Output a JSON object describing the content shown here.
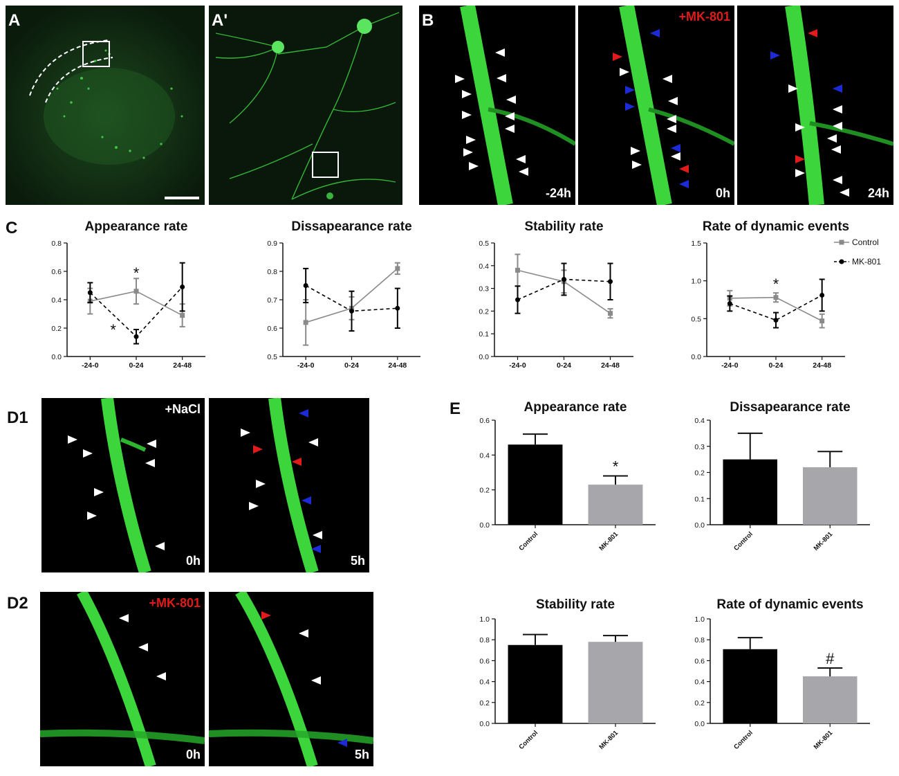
{
  "panels": {
    "A": "A",
    "A_prime": "A'",
    "B": "B",
    "C": "C",
    "D1": "D1",
    "D2": "D2",
    "E": "E"
  },
  "image_labels": {
    "b_mk801": "+MK-801",
    "b_t1": "-24h",
    "b_t2": "0h",
    "b_t3": "24h",
    "d1_nacl": "+NaCl",
    "d1_t1": "0h",
    "d1_t2": "5h",
    "d2_mk801": "+MK-801",
    "d2_t1": "0h",
    "d2_t2": "5h"
  },
  "colors": {
    "fluorescence": "#33dd33",
    "control": "#8a8a8a",
    "mk801": "#000000",
    "arrow_white": "#ffffff",
    "arrow_red": "#e11b1b",
    "arrow_blue": "#1c2bd6",
    "bar_control": "#000000",
    "bar_mk801": "#a7a7ab"
  },
  "chart_data": [
    {
      "id": "C1",
      "type": "line",
      "title": "Appearance rate",
      "categories": [
        "-24-0",
        "0-24",
        "24-48"
      ],
      "ylim": [
        0.0,
        0.8
      ],
      "yticks": [
        "0.0",
        "0.2",
        "0.4",
        "0.6",
        "0.8"
      ],
      "series": [
        {
          "name": "Control",
          "values": [
            0.39,
            0.46,
            0.29
          ],
          "err": [
            0.09,
            0.09,
            0.08
          ]
        },
        {
          "name": "MK-801",
          "values": [
            0.45,
            0.14,
            0.49
          ],
          "err": [
            0.07,
            0.05,
            0.17
          ]
        }
      ],
      "annotations": [
        {
          "text": "*",
          "category": "0-24",
          "value": 0.6
        },
        {
          "text": "*",
          "category": "-24-0",
          "offset": 0.5,
          "value": 0.2
        }
      ]
    },
    {
      "id": "C2",
      "type": "line",
      "title": "Dissapearance rate",
      "categories": [
        "-24-0",
        "0-24",
        "24-48"
      ],
      "ylim": [
        0.5,
        0.9
      ],
      "yticks": [
        "0.5",
        "0.6",
        "0.7",
        "0.8",
        "0.9"
      ],
      "series": [
        {
          "name": "Control",
          "values": [
            0.62,
            0.67,
            0.81
          ],
          "err": [
            0.08,
            0.04,
            0.02
          ]
        },
        {
          "name": "MK-801",
          "values": [
            0.75,
            0.66,
            0.67
          ],
          "err": [
            0.06,
            0.07,
            0.07
          ]
        }
      ],
      "annotations": []
    },
    {
      "id": "C3",
      "type": "line",
      "title": "Stability rate",
      "categories": [
        "-24-0",
        "0-24",
        "24-48"
      ],
      "ylim": [
        0.0,
        0.5
      ],
      "yticks": [
        "0.0",
        "0.1",
        "0.2",
        "0.3",
        "0.4",
        "0.5"
      ],
      "series": [
        {
          "name": "Control",
          "values": [
            0.38,
            0.33,
            0.19
          ],
          "err": [
            0.07,
            0.05,
            0.02
          ]
        },
        {
          "name": "MK-801",
          "values": [
            0.25,
            0.34,
            0.33
          ],
          "err": [
            0.06,
            0.07,
            0.08
          ]
        }
      ],
      "annotations": []
    },
    {
      "id": "C4",
      "type": "line",
      "title": "Rate of dynamic events",
      "categories": [
        "-24-0",
        "0-24",
        "24-48"
      ],
      "ylim": [
        0.0,
        1.5
      ],
      "yticks": [
        "0.0",
        "0.5",
        "1.0",
        "1.5"
      ],
      "series": [
        {
          "name": "Control",
          "values": [
            0.77,
            0.78,
            0.47
          ],
          "err": [
            0.1,
            0.06,
            0.09
          ]
        },
        {
          "name": "MK-801",
          "values": [
            0.7,
            0.48,
            0.81
          ],
          "err": [
            0.1,
            0.1,
            0.21
          ]
        }
      ],
      "legend": [
        "Control",
        "MK-801"
      ],
      "annotations": [
        {
          "text": "*",
          "category": "0-24",
          "value": 0.98
        }
      ]
    },
    {
      "id": "E1",
      "type": "bar",
      "title": "Appearance rate",
      "categories": [
        "Control",
        "MK-801"
      ],
      "values": [
        0.46,
        0.23
      ],
      "err": [
        0.06,
        0.05
      ],
      "ylim": [
        0.0,
        0.6
      ],
      "yticks": [
        "0.0",
        "0.2",
        "0.4",
        "0.6"
      ],
      "annotations": [
        {
          "text": "*",
          "category": "MK-801"
        }
      ]
    },
    {
      "id": "E2",
      "type": "bar",
      "title": "Dissapearance rate",
      "categories": [
        "Control",
        "MK-801"
      ],
      "values": [
        0.25,
        0.22
      ],
      "err": [
        0.1,
        0.06
      ],
      "ylim": [
        0.0,
        0.4
      ],
      "yticks": [
        "0.0",
        "0.1",
        "0.2",
        "0.3",
        "0.4"
      ],
      "annotations": []
    },
    {
      "id": "E3",
      "type": "bar",
      "title": "Stability rate",
      "categories": [
        "Control",
        "MK-801"
      ],
      "values": [
        0.75,
        0.78
      ],
      "err": [
        0.1,
        0.06
      ],
      "ylim": [
        0.0,
        1.0
      ],
      "yticks": [
        "0.0",
        "0.2",
        "0.4",
        "0.6",
        "0.8",
        "1.0"
      ],
      "annotations": []
    },
    {
      "id": "E4",
      "type": "bar",
      "title": "Rate of dynamic events",
      "categories": [
        "Control",
        "MK-801"
      ],
      "values": [
        0.71,
        0.45
      ],
      "err": [
        0.11,
        0.08
      ],
      "ylim": [
        0.0,
        1.0
      ],
      "yticks": [
        "0.0",
        "0.2",
        "0.4",
        "0.6",
        "0.8",
        "1.0"
      ],
      "annotations": [
        {
          "text": "#",
          "category": "MK-801"
        }
      ]
    }
  ]
}
